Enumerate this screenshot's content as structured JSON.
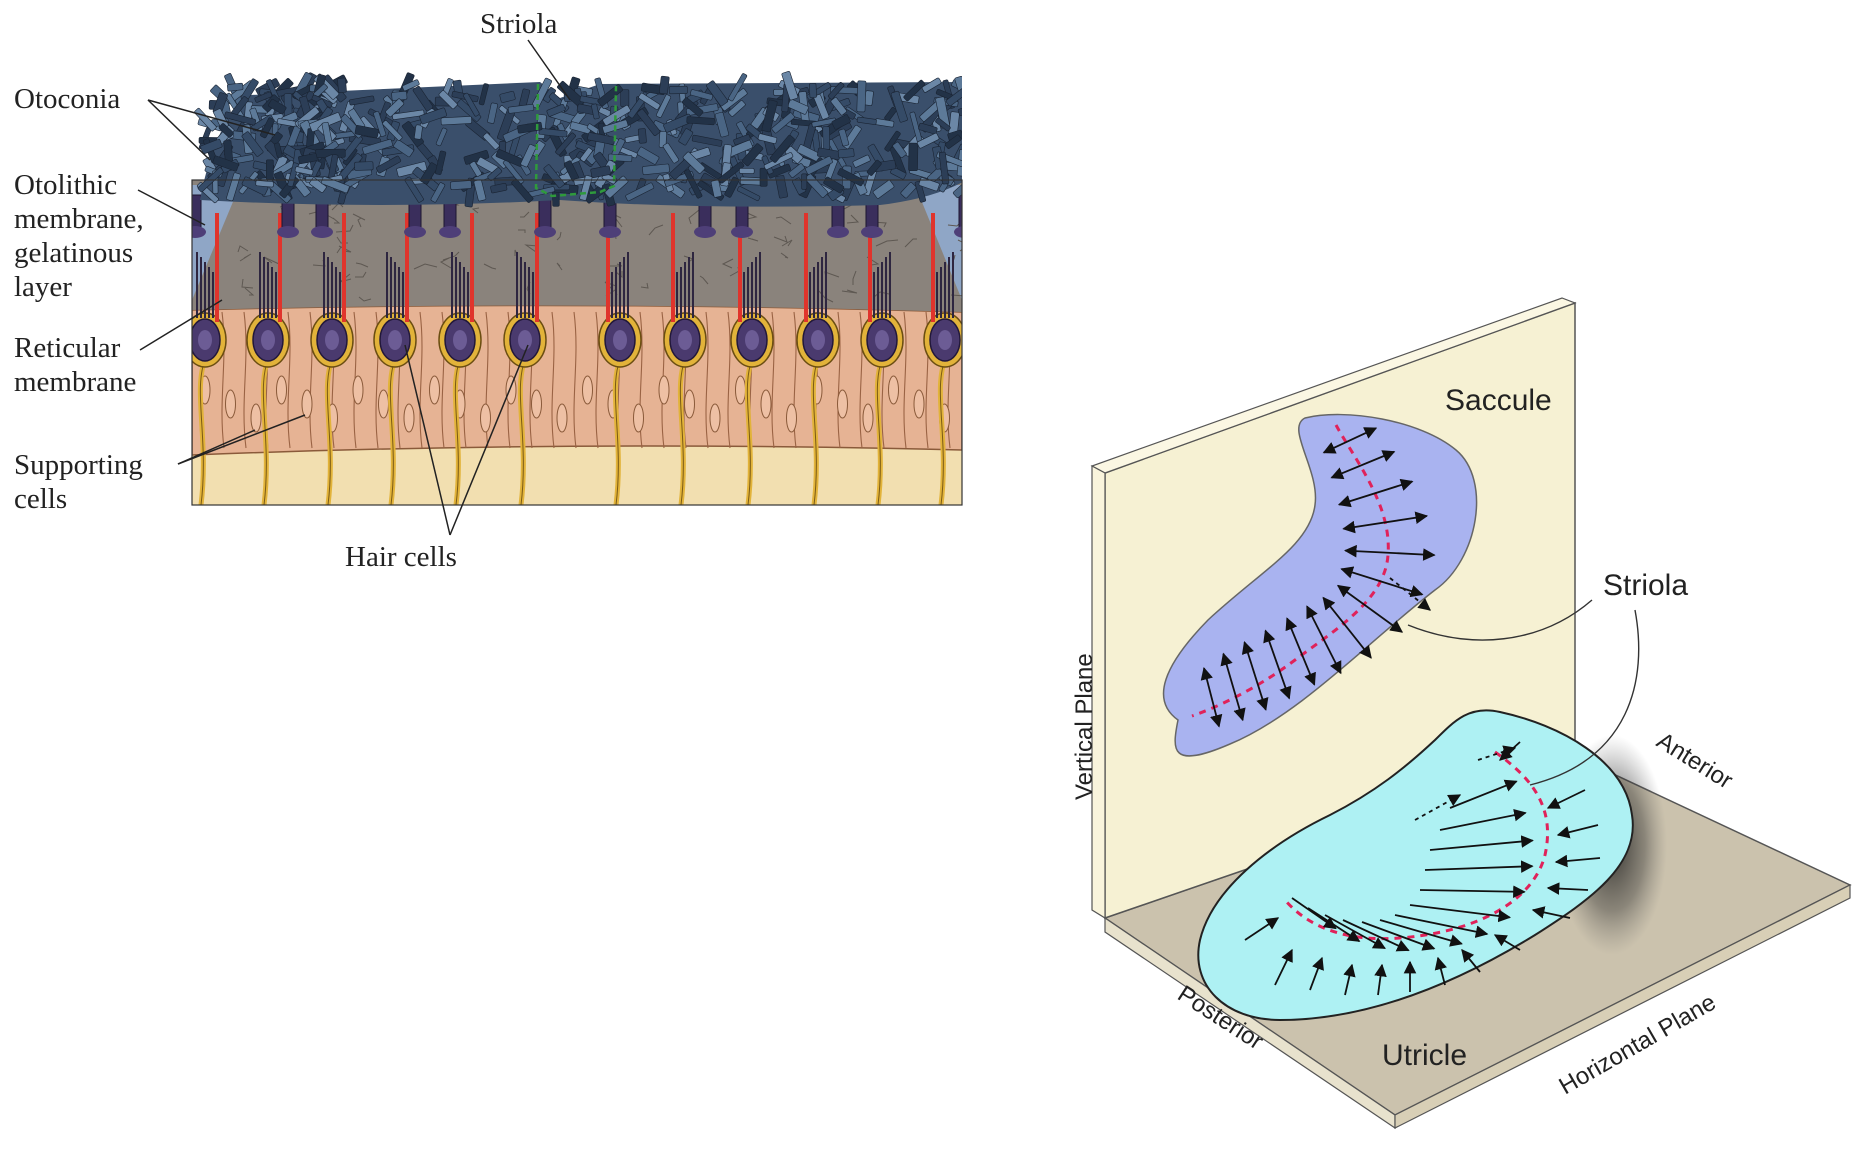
{
  "left_panel": {
    "labels": {
      "striola": "Striola",
      "otoconia": "Otoconia",
      "otolithic_line1": "Otolithic",
      "otolithic_line2": "membrane,",
      "otolithic_line3": "gelatinous",
      "otolithic_line4": "layer",
      "reticular_line1": "Reticular",
      "reticular_line2": "membrane",
      "supporting_line1": "Supporting",
      "supporting_line2": "cells",
      "hair_cells": "Hair cells"
    }
  },
  "right_panel": {
    "labels": {
      "saccule": "Saccule",
      "striola": "Striola",
      "utricle": "Utricle",
      "vertical_plane": "Vertical Plane",
      "horizontal_plane": "Horizontal Plane",
      "anterior": "Anterior",
      "posterior": "Posterior"
    }
  },
  "colors": {
    "otoconia": "#3a4f6b",
    "gel_layer": "#8a837c",
    "epithelium": "#e6b394",
    "basement": "#f2dfb0",
    "hair_cell": "#4a3a6e",
    "kinocilium": "#e0342c",
    "nerve": "#e2b33a",
    "striola_outline": "#2f9a3c",
    "saccule_fill": "#a9b3f0",
    "utricle_fill": "#aef1f3",
    "striola_line": "#e0225a",
    "vertical_wall": "#f6f1d3",
    "horizontal_floor": "#cbc2ad"
  }
}
